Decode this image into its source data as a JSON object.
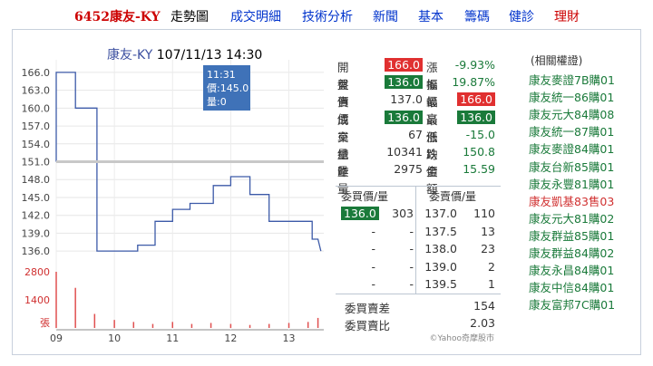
{
  "nav": {
    "stock_title": "6452康友-KY",
    "items": [
      {
        "label": "走勢圖",
        "type": "cur"
      },
      {
        "label": "成交明細",
        "type": "lnk"
      },
      {
        "label": "技術分析",
        "type": "lnk"
      },
      {
        "label": "新聞",
        "type": "lnk"
      },
      {
        "label": "基本",
        "type": "lnk"
      },
      {
        "label": "籌碼",
        "type": "lnk"
      },
      {
        "label": "健診",
        "type": "lnk"
      },
      {
        "label": "理財",
        "type": "red"
      }
    ]
  },
  "header": {
    "name": "康友-KY",
    "datetime": "107/11/13 14:30"
  },
  "tooltip": {
    "time": "11:31",
    "price": "價:145.0",
    "volume": "量:0"
  },
  "chart_data": {
    "type": "line",
    "title": "康友-KY 107/11/13 14:30",
    "x_ticks": [
      "09",
      "10",
      "11",
      "12",
      "13"
    ],
    "y_ticks": [
      "166.0",
      "163.0",
      "160.0",
      "157.0",
      "154.0",
      "151.0",
      "148.0",
      "145.0",
      "142.0",
      "139.0",
      "136.0"
    ],
    "ylim": [
      134.5,
      167.2
    ],
    "reference_price": 151.0,
    "price_series": {
      "t": [
        9.0,
        9.0,
        9.33,
        9.33,
        9.7,
        9.7,
        10.0,
        10.0,
        10.4,
        10.4,
        10.7,
        10.7,
        11.0,
        11.0,
        11.3,
        11.3,
        11.7,
        11.7,
        12.0,
        12.0,
        12.33,
        12.33,
        12.66,
        12.66,
        13.4,
        13.4,
        13.5,
        13.55
      ],
      "y": [
        151.0,
        166.0,
        166.0,
        160.0,
        160.0,
        136.0,
        136.0,
        136.0,
        136.0,
        137.0,
        137.0,
        141.0,
        141.0,
        143.0,
        143.0,
        144.0,
        144.0,
        147.0,
        147.0,
        148.5,
        148.5,
        145.5,
        145.5,
        141.0,
        141.0,
        138.0,
        138.0,
        136.0
      ]
    },
    "volume_label": "張",
    "volume_ticks": [
      "2800",
      "1400"
    ],
    "volume_ylim": [
      0,
      2800
    ],
    "volume_series": {
      "t": [
        9.0,
        9.33,
        9.66,
        10.0,
        10.33,
        10.66,
        11.0,
        11.33,
        11.66,
        12.0,
        12.33,
        12.66,
        13.0,
        13.33,
        13.5
      ],
      "v": [
        2975,
        2000,
        700,
        400,
        300,
        200,
        300,
        200,
        250,
        200,
        150,
        200,
        250,
        300,
        500
      ]
    },
    "watermark": "©Yahoo奇摩股市"
  },
  "quote": {
    "rows": [
      {
        "l1": "開盤",
        "v1": "166.0",
        "c1": "redbox",
        "l2": "漲幅",
        "v2": "-9.93%",
        "c2": "down"
      },
      {
        "l1": "買價",
        "v1": "136.0",
        "c1": "grnbox",
        "l2": "振幅",
        "v2": "19.87%",
        "c2": "down"
      },
      {
        "l1": "賣價",
        "v1": "137.0",
        "c1": "",
        "l2": "最高",
        "v2": "166.0",
        "c2": "redbox"
      },
      {
        "l1": "成交",
        "v1": "136.0",
        "c1": "grnbox",
        "l2": "最低",
        "v2": "136.0",
        "c2": "grnbox"
      },
      {
        "l1": "單量",
        "v1": "67",
        "c1": "",
        "l2": "漲跌",
        "v2": "-15.0",
        "c2": "down"
      },
      {
        "l1": "總量",
        "v1": "10341",
        "c1": "",
        "l2": "均價",
        "v2": "150.8",
        "c2": "down"
      },
      {
        "l1": "昨量",
        "v1": "2975",
        "c1": "",
        "l2": "金額",
        "v2": "15.59",
        "c2": "down"
      }
    ]
  },
  "orderbook": {
    "buy_header": "委買價/量",
    "sell_header": "委賣價/量",
    "rows": [
      {
        "bp": "136.0",
        "bq": "303",
        "sp": "137.0",
        "sq": "110"
      },
      {
        "bp": "-",
        "bq": "-",
        "sp": "137.5",
        "sq": "13"
      },
      {
        "bp": "-",
        "bq": "-",
        "sp": "138.0",
        "sq": "23"
      },
      {
        "bp": "-",
        "bq": "-",
        "sp": "139.0",
        "sq": "2"
      },
      {
        "bp": "-",
        "bq": "-",
        "sp": "139.5",
        "sq": "1"
      }
    ],
    "diff_label": "委買賣差",
    "diff_value": "154",
    "ratio_label": "委買賣比",
    "ratio_value": "2.03"
  },
  "warrants": {
    "header": "(相關權證)",
    "items": [
      {
        "label": "康友麥證7B購01",
        "type": "buy"
      },
      {
        "label": "康友統一86購01",
        "type": "buy"
      },
      {
        "label": "康友元大84購08",
        "type": "buy"
      },
      {
        "label": "康友統一87購01",
        "type": "buy"
      },
      {
        "label": "康友麥證84購01",
        "type": "buy"
      },
      {
        "label": "康友台新85購01",
        "type": "buy"
      },
      {
        "label": "康友永豐81購01",
        "type": "buy"
      },
      {
        "label": "康友凱基83售03",
        "type": "sell"
      },
      {
        "label": "康友元大81購02",
        "type": "buy"
      },
      {
        "label": "康友群益85購01",
        "type": "buy"
      },
      {
        "label": "康友群益84購02",
        "type": "buy"
      },
      {
        "label": "康友永昌84購01",
        "type": "buy"
      },
      {
        "label": "康友中信84購01",
        "type": "buy"
      },
      {
        "label": "康友富邦7C購01",
        "type": "buy"
      }
    ]
  }
}
